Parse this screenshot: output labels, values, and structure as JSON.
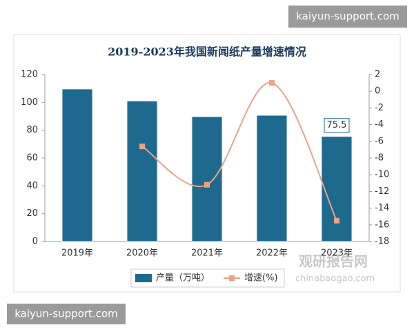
{
  "chart_data": {
    "type": "bar_line",
    "title": "2019-2023年我国新闻纸产量增速情况",
    "categories": [
      "2019年",
      "2020年",
      "2021年",
      "2022年",
      "2023年"
    ],
    "series": [
      {
        "name": "产量（万吨）",
        "type": "bar",
        "color": "#1d6a8e",
        "values": [
          109.6,
          101,
          89.7,
          90.7,
          75.5
        ],
        "value_labels": [
          null,
          null,
          null,
          null,
          "75.5"
        ]
      },
      {
        "name": "增速(%)",
        "type": "line",
        "axis": "y2",
        "color": "#eea285",
        "smooth": true,
        "values": [
          null,
          -6.6,
          -11.2,
          1.0,
          -15.5
        ]
      }
    ],
    "ylim": [
      0,
      120
    ],
    "yticks": [
      0,
      20,
      40,
      60,
      80,
      100,
      120
    ],
    "y2lim": [
      -18,
      2
    ],
    "y2ticks": [
      -18,
      -16,
      -14,
      -12,
      -10,
      -8,
      -6,
      -4,
      -2,
      0,
      2
    ],
    "grid": false,
    "legend": "bottom"
  },
  "overlays": {
    "top_banner": "kaiyun-support.com",
    "bottom_banner": "kaiyun-support.com",
    "watermark_cn": "观研报告网",
    "watermark_url": "chinabaogao.com"
  }
}
